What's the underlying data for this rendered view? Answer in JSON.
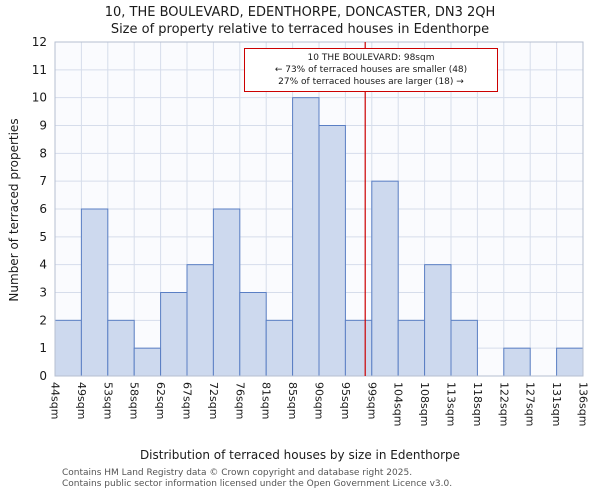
{
  "title": "10, THE BOULEVARD, EDENTHORPE, DONCASTER, DN3 2QH",
  "subtitle": "Size of property relative to terraced houses in Edenthorpe",
  "chart_data": {
    "type": "bar",
    "categories": [
      "44sqm",
      "49sqm",
      "53sqm",
      "58sqm",
      "62sqm",
      "67sqm",
      "72sqm",
      "76sqm",
      "81sqm",
      "85sqm",
      "90sqm",
      "95sqm",
      "99sqm",
      "104sqm",
      "108sqm",
      "113sqm",
      "118sqm",
      "122sqm",
      "127sqm",
      "131sqm",
      "136sqm"
    ],
    "values": [
      2,
      6,
      2,
      1,
      3,
      4,
      6,
      3,
      2,
      10,
      9,
      2,
      7,
      2,
      4,
      2,
      0,
      1,
      0,
      1
    ],
    "title": "10, THE BOULEVARD, EDENTHORPE, DONCASTER, DN3 2QH",
    "subtitle": "Size of property relative to terraced houses in Edenthorpe",
    "xlabel": "Distribution of terraced houses by size in Edenthorpe",
    "ylabel": "Number of terraced properties",
    "ylim": [
      0,
      12
    ],
    "ytick_step": 1,
    "grid": true,
    "marker": {
      "sqm": 98,
      "label": "98sqm",
      "color": "#cc0000"
    },
    "bar_fill": "#cdd9ee",
    "bar_stroke": "#5a7fc4",
    "grid_color": "#d6ddeb",
    "frame_color": "#b6bfd0",
    "plot_bg": "#fafbfe"
  },
  "annotation": {
    "line1": "10 THE BOULEVARD: 98sqm",
    "line2": "← 73% of terraced houses are smaller (48)",
    "line3": "27% of terraced houses are larger (18) →"
  },
  "footer": {
    "line1": "Contains HM Land Registry data © Crown copyright and database right 2025.",
    "line2": "Contains public sector information licensed under the Open Government Licence v3.0."
  }
}
